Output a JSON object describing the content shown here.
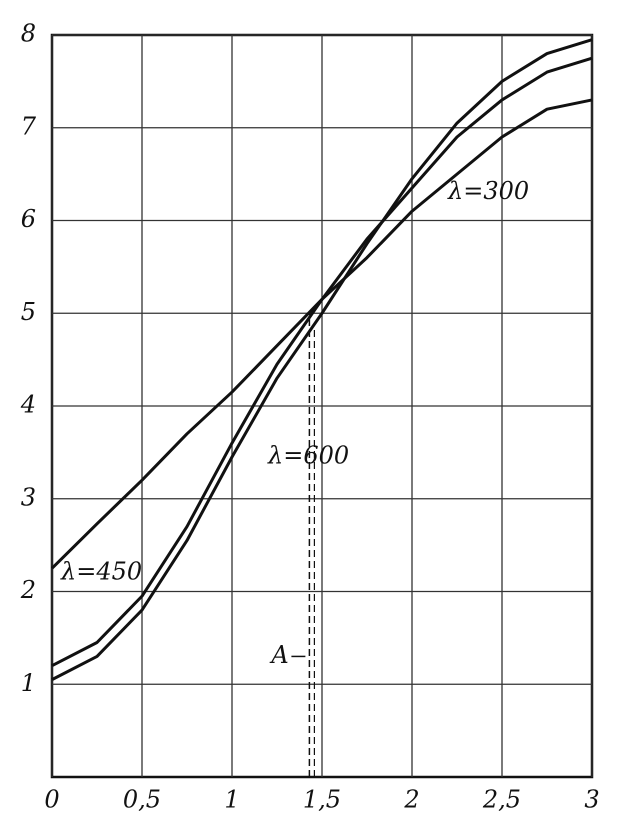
{
  "chart_data": {
    "type": "line",
    "x": [
      0,
      0.25,
      0.5,
      0.75,
      1,
      1.25,
      1.5,
      1.75,
      2,
      2.25,
      2.5,
      2.75,
      3
    ],
    "series": [
      {
        "name": "λ=300",
        "color": "#111111",
        "values": [
          2.25,
          2.73,
          3.2,
          3.7,
          4.15,
          4.65,
          5.15,
          5.6,
          6.1,
          6.5,
          6.9,
          7.2,
          7.3
        ]
      },
      {
        "name": "λ=450",
        "color": "#111111",
        "values": [
          1.2,
          1.45,
          1.95,
          2.7,
          3.6,
          4.45,
          5.15,
          5.8,
          6.35,
          6.9,
          7.3,
          7.6,
          7.75
        ]
      },
      {
        "name": "λ=600",
        "color": "#111111",
        "values": [
          1.05,
          1.3,
          1.8,
          2.55,
          3.45,
          4.3,
          5.0,
          5.75,
          6.45,
          7.05,
          7.5,
          7.8,
          7.95
        ]
      }
    ],
    "xlim": [
      0,
      3
    ],
    "xticks": [
      0,
      {
        "value": 0.5,
        "label": "0,5"
      },
      1,
      {
        "value": 1.5,
        "label": "1,5"
      },
      2,
      {
        "value": 2.5,
        "label": "2,5"
      },
      3
    ],
    "ylim": [
      0,
      8
    ],
    "yticks": [
      1,
      2,
      3,
      4,
      5,
      6,
      7,
      8
    ],
    "grid": true,
    "annotations": [
      {
        "text": "A",
        "x": 1.43,
        "y": 5
      }
    ]
  }
}
